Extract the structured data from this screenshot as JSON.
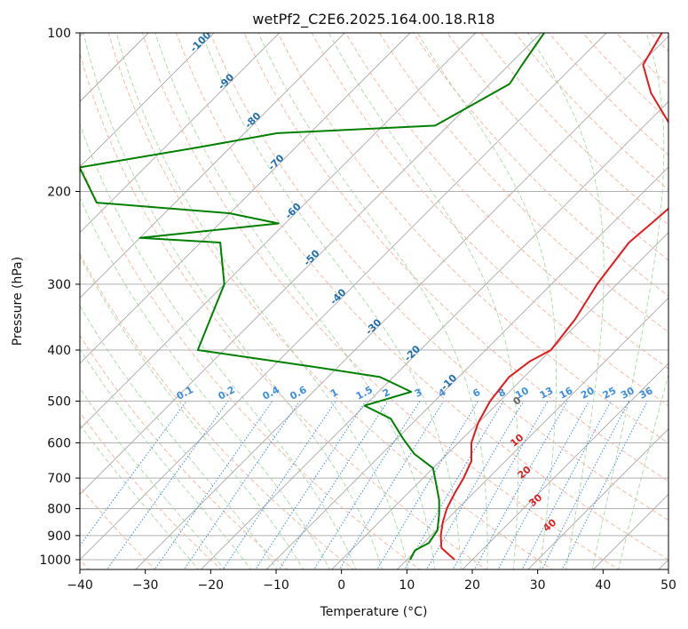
{
  "chart_data": {
    "type": "line",
    "title": "wetPf2_C2E6.2025.164.00.18.R18",
    "xlabel": "Temperature (°C)",
    "ylabel": "Pressure (hPa)",
    "xlim": [
      -40,
      50
    ],
    "ylim": [
      1050,
      100
    ],
    "yscale": "log",
    "grid": true,
    "x_ticks": [
      "−40",
      "−30",
      "−20",
      "−10",
      "0",
      "10",
      "20",
      "30",
      "40",
      "50"
    ],
    "y_ticks": [
      "100",
      "200",
      "300",
      "400",
      "500",
      "600",
      "700",
      "800",
      "900",
      "1000"
    ],
    "y_tick_values": [
      100,
      200,
      300,
      400,
      500,
      600,
      700,
      800,
      900,
      1000
    ],
    "series": [
      {
        "color": "#e41a1c",
        "points": [
          [
            17.3,
            1000
          ],
          [
            13.5,
            950
          ],
          [
            11.5,
            900
          ],
          [
            9.8,
            850
          ],
          [
            8.3,
            800
          ],
          [
            7.2,
            750
          ],
          [
            6.2,
            700
          ],
          [
            4.8,
            650
          ],
          [
            2.0,
            600
          ],
          [
            0.0,
            550
          ],
          [
            -1.5,
            500
          ],
          [
            -2.3,
            450
          ],
          [
            -1.5,
            420
          ],
          [
            0.0,
            400
          ],
          [
            -1.0,
            350
          ],
          [
            -3.0,
            300
          ],
          [
            -4.5,
            250
          ],
          [
            -4.0,
            230
          ],
          [
            -3.5,
            210
          ],
          [
            -5.0,
            190
          ],
          [
            -9.0,
            170
          ],
          [
            -16.0,
            150
          ],
          [
            -24.0,
            130
          ],
          [
            -29.5,
            115
          ],
          [
            -31.5,
            100
          ]
        ]
      },
      {
        "color": "#008000",
        "points": [
          [
            10.5,
            1000
          ],
          [
            9.8,
            960
          ],
          [
            10.8,
            930
          ],
          [
            10.2,
            880
          ],
          [
            8.0,
            820
          ],
          [
            5.8,
            770
          ],
          [
            3.0,
            720
          ],
          [
            0.0,
            670
          ],
          [
            -5.0,
            630
          ],
          [
            -9.0,
            590
          ],
          [
            -14.0,
            540
          ],
          [
            -20.0,
            510
          ],
          [
            -15.0,
            480
          ],
          [
            -22.0,
            450
          ],
          [
            -34.0,
            430
          ],
          [
            -54.0,
            400
          ],
          [
            -60.0,
            300
          ],
          [
            -67.0,
            250
          ],
          [
            -80.0,
            245
          ],
          [
            -61.0,
            230
          ],
          [
            -70.0,
            220
          ],
          [
            -92.0,
            210
          ],
          [
            -100.0,
            180
          ],
          [
            -85.0,
            165
          ],
          [
            -75.0,
            155
          ],
          [
            -52.0,
            150
          ],
          [
            -47.0,
            125
          ],
          [
            -48.0,
            115
          ],
          [
            -49.5,
            100
          ]
        ]
      }
    ],
    "isotherm_labels": [
      {
        "text": "-100",
        "T": -100,
        "p": 105
      },
      {
        "text": "-90",
        "T": -90,
        "p": 125
      },
      {
        "text": "-80",
        "T": -80,
        "p": 148
      },
      {
        "text": "-70",
        "T": -70,
        "p": 178
      },
      {
        "text": "-60",
        "T": -60,
        "p": 220
      },
      {
        "text": "-50",
        "T": -50,
        "p": 270
      },
      {
        "text": "-40",
        "T": -40,
        "p": 320
      },
      {
        "text": "-30",
        "T": -30,
        "p": 365
      },
      {
        "text": "-20",
        "T": -20,
        "p": 410
      },
      {
        "text": "-10",
        "T": -10,
        "p": 465
      }
    ],
    "mixing_ratio_labels": [
      "0.1",
      "0.2",
      "0.4",
      "0.6",
      "1",
      "1.5",
      "2",
      "3",
      "4",
      "6",
      "8",
      "10",
      "13",
      "16",
      "20",
      "25",
      "30",
      "36"
    ],
    "moist_adiabat_labels": [
      "0",
      "10",
      "20",
      "30",
      "40"
    ]
  }
}
